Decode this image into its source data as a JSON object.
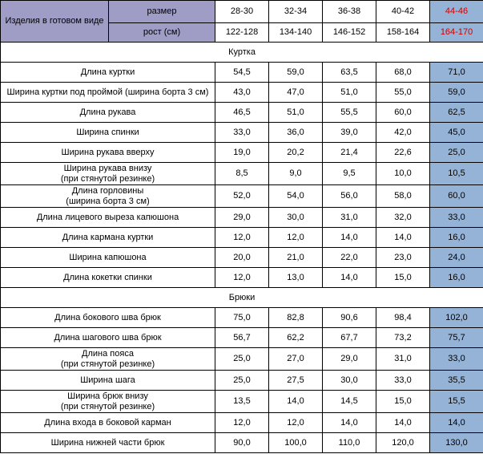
{
  "header": {
    "product_label": "Изделия в готовом виде",
    "size_label": "размер",
    "height_label": "рост (см)",
    "sizes": [
      "28-30",
      "32-34",
      "36-38",
      "40-42",
      "44-46"
    ],
    "heights": [
      "122-128",
      "134-140",
      "146-152",
      "158-164",
      "164-170"
    ],
    "highlight_color": "#95b3d7",
    "header_color": "#9f9cc6",
    "highlight_text_color": "#cc0000"
  },
  "sections": [
    {
      "title": "Куртка",
      "rows": [
        {
          "label": "Длина куртки",
          "values": [
            "54,5",
            "59,0",
            "63,5",
            "68,0",
            "71,0"
          ]
        },
        {
          "label": "Ширина куртки под проймой (ширина борта 3 см)",
          "values": [
            "43,0",
            "47,0",
            "51,0",
            "55,0",
            "59,0"
          ]
        },
        {
          "label": "Длина рукава",
          "values": [
            "46,5",
            "51,0",
            "55,5",
            "60,0",
            "62,5"
          ]
        },
        {
          "label": "Ширина спинки",
          "values": [
            "33,0",
            "36,0",
            "39,0",
            "42,0",
            "45,0"
          ]
        },
        {
          "label": "Ширина рукава вверху",
          "values": [
            "19,0",
            "20,2",
            "21,4",
            "22,6",
            "25,0"
          ]
        },
        {
          "label": "Ширина рукава внизу\n(при стянутой резинке)",
          "values": [
            "8,5",
            "9,0",
            "9,5",
            "10,0",
            "10,5"
          ]
        },
        {
          "label": "Длина горловины\n(ширина борта 3 см)",
          "values": [
            "52,0",
            "54,0",
            "56,0",
            "58,0",
            "60,0"
          ]
        },
        {
          "label": "Длина лицевого выреза капюшона",
          "values": [
            "29,0",
            "30,0",
            "31,0",
            "32,0",
            "33,0"
          ]
        },
        {
          "label": "Длина кармана куртки",
          "values": [
            "12,0",
            "12,0",
            "14,0",
            "14,0",
            "16,0"
          ]
        },
        {
          "label": "Ширина капюшона",
          "values": [
            "20,0",
            "21,0",
            "22,0",
            "23,0",
            "24,0"
          ]
        },
        {
          "label": "Длина кокетки спинки",
          "values": [
            "12,0",
            "13,0",
            "14,0",
            "15,0",
            "16,0"
          ]
        }
      ]
    },
    {
      "title": "Брюки",
      "rows": [
        {
          "label": "Длина бокового шва брюк",
          "values": [
            "75,0",
            "82,8",
            "90,6",
            "98,4",
            "102,0"
          ]
        },
        {
          "label": "Длина шагового шва брюк",
          "values": [
            "56,7",
            "62,2",
            "67,7",
            "73,2",
            "75,7"
          ]
        },
        {
          "label": "Длина пояса\n(при стянутой резинке)",
          "values": [
            "25,0",
            "27,0",
            "29,0",
            "31,0",
            "33,0"
          ]
        },
        {
          "label": "Ширина шага",
          "values": [
            "25,0",
            "27,5",
            "30,0",
            "33,0",
            "35,5"
          ]
        },
        {
          "label": "Ширина брюк внизу\n(при стянутой резинке)",
          "values": [
            "13,5",
            "14,0",
            "14,5",
            "15,0",
            "15,5"
          ]
        },
        {
          "label": "Длина входа в боковой карман",
          "values": [
            "12,0",
            "12,0",
            "14,0",
            "14,0",
            "14,0"
          ]
        },
        {
          "label": "Ширина нижней части брюк",
          "values": [
            "90,0",
            "100,0",
            "110,0",
            "120,0",
            "130,0"
          ]
        }
      ]
    }
  ]
}
